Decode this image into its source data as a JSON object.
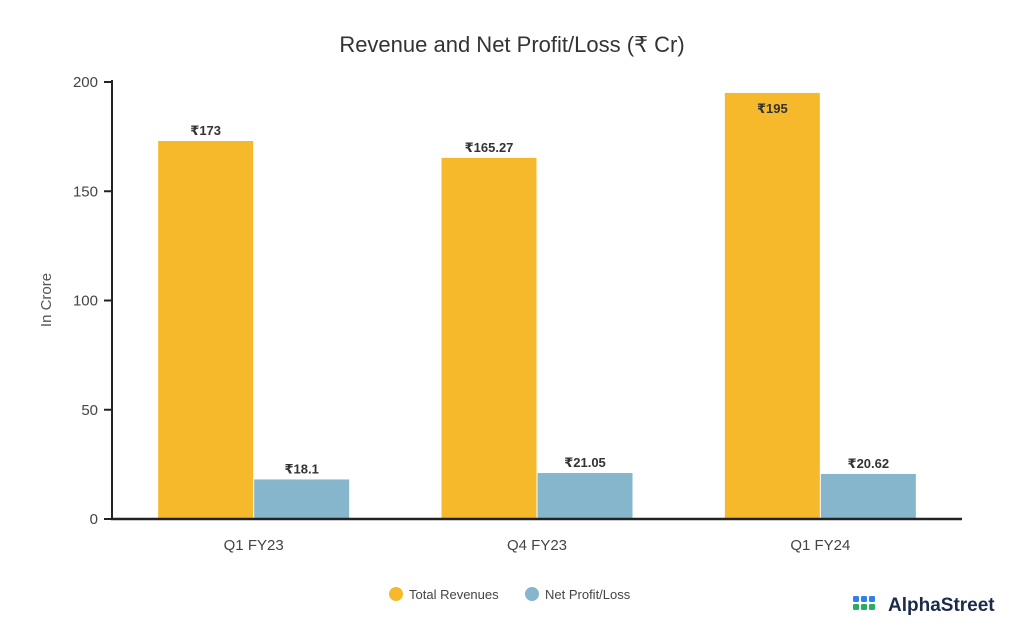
{
  "chart_data": {
    "type": "bar",
    "title": "Revenue and Net Profit/Loss (₹ Cr)",
    "xlabel": "",
    "ylabel": "In Crore",
    "ylim": [
      0,
      200
    ],
    "yticks": [
      0,
      50,
      100,
      150,
      200
    ],
    "categories": [
      "Q1 FY23",
      "Q4 FY23",
      "Q1 FY24"
    ],
    "series": [
      {
        "name": "Total Revenues",
        "color": "#F6B92B",
        "values": [
          173,
          165.27,
          195
        ],
        "labels": [
          "₹173",
          "₹165.27",
          "₹195"
        ]
      },
      {
        "name": "Net Profit/Loss",
        "color": "#86B6CB",
        "values": [
          18.1,
          21.05,
          20.62
        ],
        "labels": [
          "₹18.1",
          "₹21.05",
          "₹20.62"
        ]
      }
    ],
    "legend_position": "bottom-center",
    "grid": false
  },
  "brand": {
    "name": "AlphaStreet",
    "logo_colors": [
      "#2F80ED",
      "#27AE60"
    ]
  }
}
